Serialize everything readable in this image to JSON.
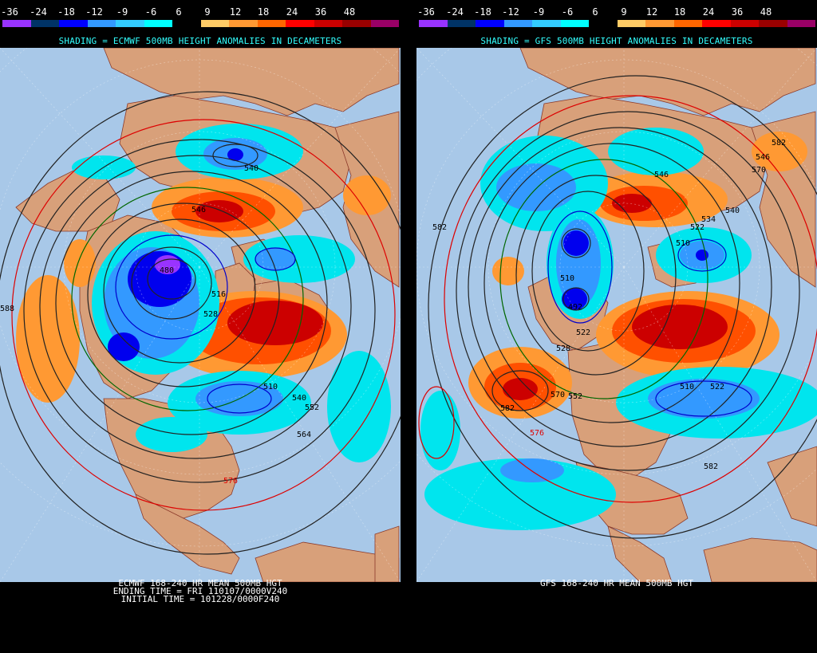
{
  "scale": {
    "labels": [
      "-36",
      "-24",
      "-18",
      "-12",
      "-9",
      "-6",
      "6",
      "9",
      "12",
      "18",
      "24",
      "36",
      "48"
    ],
    "colors": [
      "#9933ff",
      "#003366",
      "#0000ff",
      "#3399ff",
      "#33ccff",
      "#00ffff",
      "#000000",
      "#ffcc66",
      "#ff9933",
      "#ff6600",
      "#ff0000",
      "#cc0000",
      "#990000",
      "#990066"
    ]
  },
  "left": {
    "shading_title": "SHADING = ECMWF 500MB HEIGHT ANOMALIES IN DECAMETERS",
    "caption_lines": [
      "ECMWF 168-240 HR MEAN 500MB HGT",
      "ENDING TIME = FRI 110107/0000V240",
      "INITIAL TIME = 101228/0000F240"
    ],
    "contour_labels": [
      "546",
      "540",
      "516",
      "528",
      "510",
      "540",
      "552",
      "564",
      "576",
      "588",
      "480"
    ]
  },
  "right": {
    "shading_title": "SHADING = GFS 500MB HEIGHT ANOMALIES IN DECAMETERS",
    "caption_lines": [
      "GFS 168-240 HR MEAN 500MB HGT"
    ],
    "contour_labels": [
      "582",
      "546",
      "570",
      "546",
      "540",
      "534",
      "522",
      "510",
      "582",
      "510",
      "492",
      "522",
      "528",
      "570",
      "552",
      "576",
      "582",
      "510",
      "522",
      "582"
    ]
  },
  "colors": {
    "ocean": "#a8c8e8",
    "land": "#d8a07a",
    "warm_light": "#ff9933",
    "warm_mid": "#ff5000",
    "warm_dark": "#cc0000",
    "cool_light": "#00e5ee",
    "cool_mid": "#3399ff",
    "cool_dark": "#0000ee",
    "cool_core": "#9933ff",
    "title_cyan": "#33ffff"
  }
}
